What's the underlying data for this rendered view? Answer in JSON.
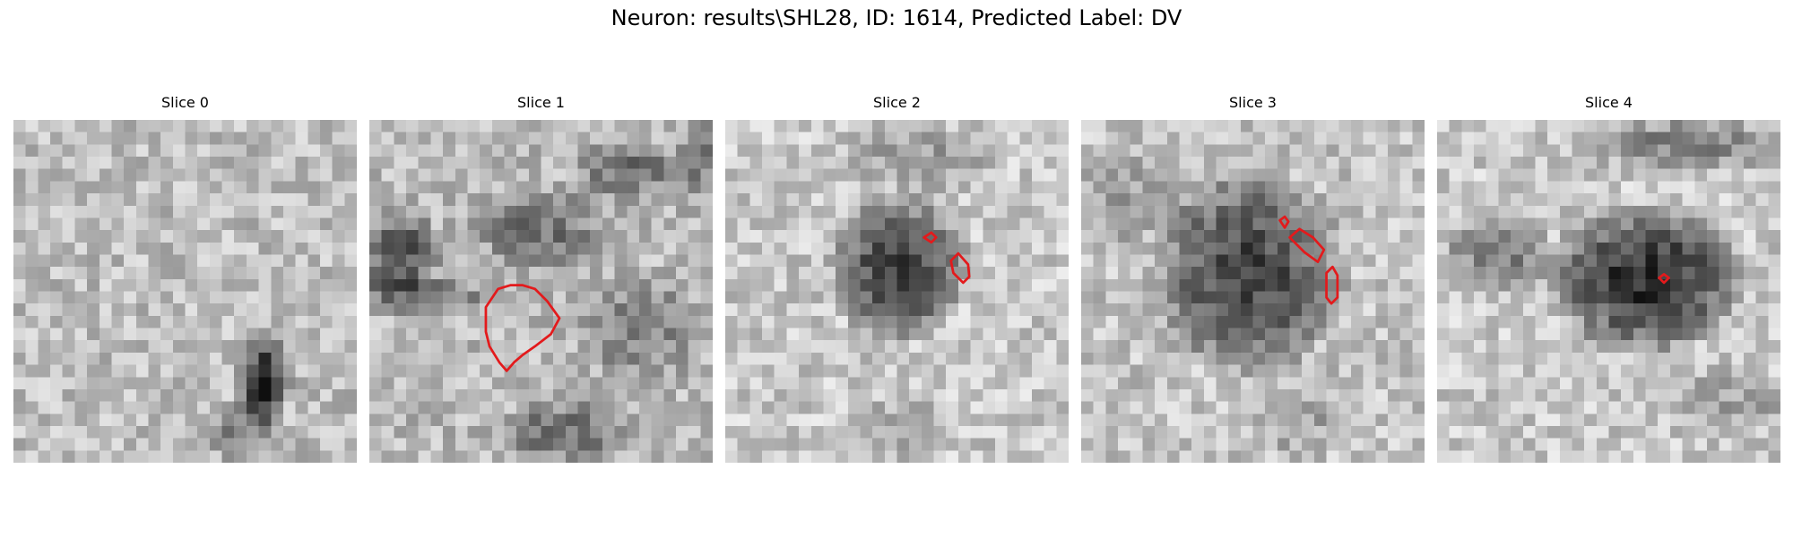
{
  "figure": {
    "title": "Neuron: results\\SHL28, ID: 1614, Predicted Label: DV"
  },
  "slices": [
    {
      "title": "Slice 0"
    },
    {
      "title": "Slice 1"
    },
    {
      "title": "Slice 2"
    },
    {
      "title": "Slice 3"
    },
    {
      "title": "Slice 4"
    }
  ],
  "colors": {
    "contour": "#e31a1c",
    "background": "#ffffff"
  }
}
